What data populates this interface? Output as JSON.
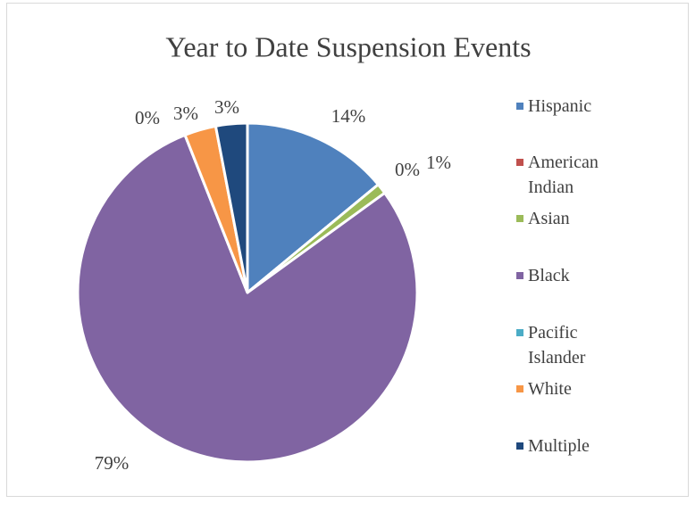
{
  "chart_data": {
    "type": "pie",
    "title": "Year to Date Suspension Events",
    "categories": [
      "Hispanic",
      "American Indian",
      "Asian",
      "Black",
      "Pacific Islander",
      "White",
      "Multiple"
    ],
    "values": [
      14,
      0,
      1,
      79,
      0,
      3,
      3
    ],
    "value_labels": [
      "14%",
      "0%",
      "1%",
      "79%",
      "0%",
      "3%",
      "3%"
    ],
    "colors": [
      "#4f81bd",
      "#c0504d",
      "#9bbb59",
      "#8064a2",
      "#4bacc6",
      "#f79646",
      "#1f497d"
    ],
    "legend": "right"
  }
}
